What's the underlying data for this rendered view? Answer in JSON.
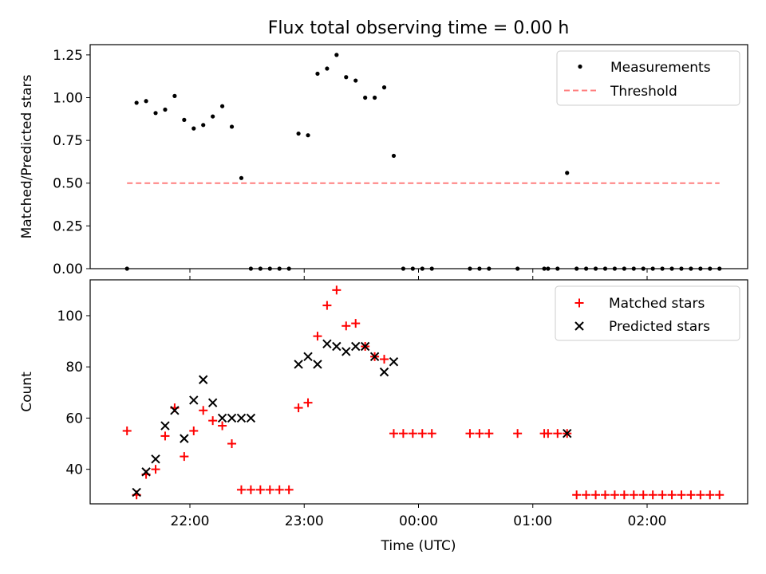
{
  "chart_data": [
    {
      "type": "scatter",
      "title": "Flux total observing time = 0.00 h",
      "ylabel": "Matched/Predicted stars",
      "ylim": [
        0.0,
        1.31
      ],
      "yticks": [
        "0.00",
        "0.25",
        "0.50",
        "0.75",
        "1.00",
        "1.25"
      ],
      "legend_position": "top-right",
      "legend": [
        "Measurements",
        "Threshold"
      ],
      "colors": {
        "measurements": "#000000",
        "threshold": "#ff7f7f"
      },
      "threshold": {
        "value": 0.5,
        "x_start": "21:27",
        "x_end": "02:38"
      },
      "series": [
        {
          "name": "Measurements",
          "x": [
            "21:27",
            "21:32",
            "21:37",
            "21:42",
            "21:47",
            "21:52",
            "21:57",
            "22:02",
            "22:07",
            "22:12",
            "22:17",
            "22:22",
            "22:27",
            "22:32",
            "22:37",
            "22:42",
            "22:47",
            "22:52",
            "22:57",
            "23:02",
            "23:07",
            "23:12",
            "23:17",
            "23:22",
            "23:27",
            "23:32",
            "23:37",
            "23:42",
            "23:47",
            "23:52",
            "23:57",
            "00:02",
            "00:07",
            "00:27",
            "00:32",
            "00:37",
            "00:52",
            "01:06",
            "01:08",
            "01:13",
            "01:18",
            "01:23",
            "01:28",
            "01:33",
            "01:38",
            "01:43",
            "01:48",
            "01:53",
            "01:58",
            "02:03",
            "02:08",
            "02:13",
            "02:18",
            "02:23",
            "02:28",
            "02:33",
            "02:38"
          ],
          "y": [
            0.0,
            0.97,
            0.98,
            0.91,
            0.93,
            1.01,
            0.87,
            0.82,
            0.84,
            0.89,
            0.95,
            0.83,
            0.53,
            0.0,
            0.0,
            0.0,
            0.0,
            0.0,
            0.79,
            0.78,
            1.14,
            1.17,
            1.25,
            1.12,
            1.1,
            1.0,
            1.0,
            1.06,
            0.66,
            0.0,
            0.0,
            0.0,
            0.0,
            0.0,
            0.0,
            0.0,
            0.0,
            0.0,
            0.0,
            0.0,
            0.56,
            0.0,
            0.0,
            0.0,
            0.0,
            0.0,
            0.0,
            0.0,
            0.0,
            0.0,
            0.0,
            0.0,
            0.0,
            0.0,
            0.0,
            0.0,
            0.0
          ]
        }
      ]
    },
    {
      "type": "scatter",
      "xlabel": "Time (UTC)",
      "ylabel": "Count",
      "xticks": [
        "22:00",
        "23:00",
        "00:00",
        "01:00",
        "02:00"
      ],
      "ylim": [
        26.5,
        114
      ],
      "yticks": [
        "40",
        "60",
        "80",
        "100"
      ],
      "legend_position": "top-right",
      "legend": [
        "Matched stars",
        "Predicted stars"
      ],
      "colors": {
        "matched": "#ff0000",
        "predicted": "#000000"
      },
      "series": [
        {
          "name": "Matched stars",
          "x": [
            "21:27",
            "21:32",
            "21:37",
            "21:42",
            "21:47",
            "21:52",
            "21:57",
            "22:02",
            "22:07",
            "22:12",
            "22:17",
            "22:22",
            "22:27",
            "22:32",
            "22:37",
            "22:42",
            "22:47",
            "22:52",
            "22:57",
            "23:02",
            "23:07",
            "23:12",
            "23:17",
            "23:22",
            "23:27",
            "23:32",
            "23:37",
            "23:42",
            "23:47",
            "23:52",
            "23:57",
            "00:02",
            "00:07",
            "00:27",
            "00:32",
            "00:37",
            "00:52",
            "01:06",
            "01:08",
            "01:13",
            "01:18",
            "01:23",
            "01:28",
            "01:33",
            "01:38",
            "01:43",
            "01:48",
            "01:53",
            "01:58",
            "02:03",
            "02:08",
            "02:13",
            "02:18",
            "02:23",
            "02:28",
            "02:33",
            "02:38"
          ],
          "y": [
            55,
            30,
            38,
            40,
            53,
            64,
            45,
            55,
            63,
            59,
            57,
            50,
            32,
            32,
            32,
            32,
            32,
            32,
            64,
            66,
            92,
            104,
            110,
            96,
            97,
            88,
            84,
            83,
            54,
            54,
            54,
            54,
            54,
            54,
            54,
            54,
            54,
            54,
            54,
            54,
            54,
            30,
            30,
            30,
            30,
            30,
            30,
            30,
            30,
            30,
            30,
            30,
            30,
            30,
            30,
            30,
            30
          ]
        },
        {
          "name": "Predicted stars",
          "x": [
            "21:32",
            "21:37",
            "21:42",
            "21:47",
            "21:52",
            "21:57",
            "22:02",
            "22:07",
            "22:12",
            "22:17",
            "22:22",
            "22:27",
            "22:32",
            "22:57",
            "23:02",
            "23:07",
            "23:12",
            "23:17",
            "23:22",
            "23:27",
            "23:32",
            "23:37",
            "23:42",
            "23:47",
            "01:18"
          ],
          "y": [
            31,
            39,
            44,
            57,
            63,
            52,
            67,
            75,
            66,
            60,
            60,
            60,
            60,
            81,
            84,
            81,
            89,
            88,
            86,
            88,
            88,
            84,
            78,
            82,
            54
          ]
        }
      ]
    }
  ]
}
